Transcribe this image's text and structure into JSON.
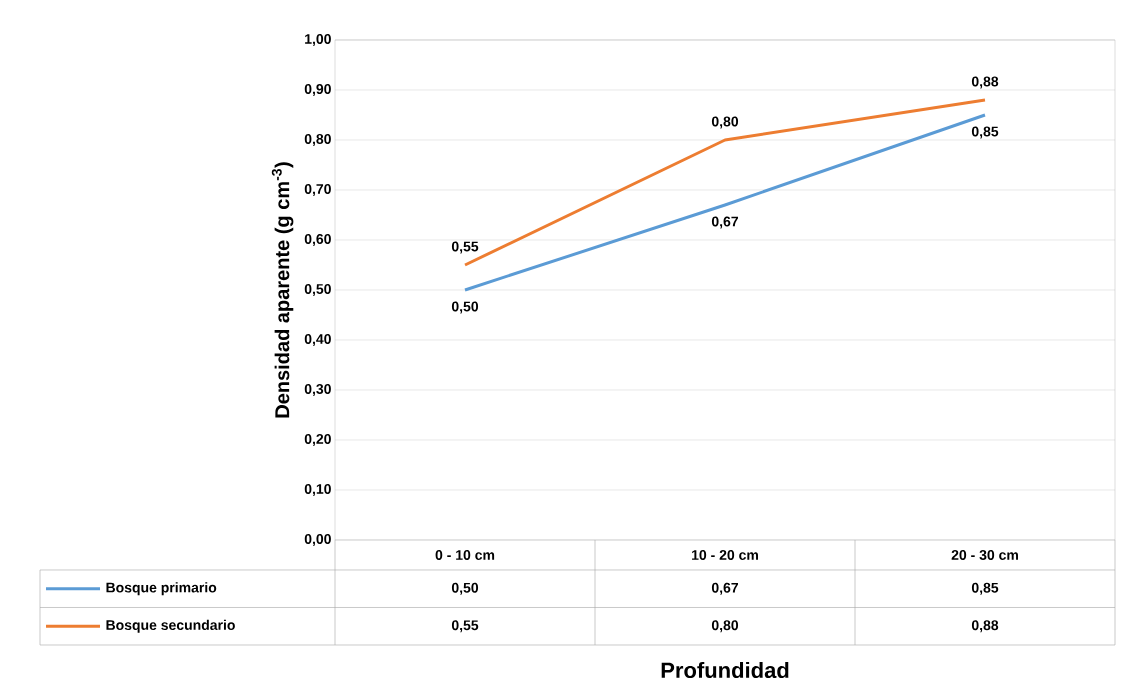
{
  "chart_data": {
    "type": "line",
    "ylabel": "Densidad aparente (g cm$^{-3}$)",
    "xlabel": "Profundidad",
    "categories": [
      "0 - 10 cm",
      "10 - 20 cm",
      "20 - 30 cm"
    ],
    "series": [
      {
        "name": "Bosque primario",
        "color": "#5b9bd5",
        "values": [
          0.5,
          0.67,
          0.85
        ],
        "value_labels": [
          "0,50",
          "0,67",
          "0,85"
        ]
      },
      {
        "name": "Bosque secundario",
        "color": "#ed7d31",
        "values": [
          0.55,
          0.8,
          0.88
        ],
        "value_labels": [
          "0,55",
          "0,80",
          "0,88"
        ]
      }
    ],
    "ylim": [
      0,
      1
    ],
    "yticks": [
      {
        "value": 0,
        "label": "0,00"
      },
      {
        "value": 0.1,
        "label": "0,10"
      },
      {
        "value": 0.2,
        "label": "0,20"
      },
      {
        "value": 0.3,
        "label": "0,30"
      },
      {
        "value": 0.4,
        "label": "0,40"
      },
      {
        "value": 0.5,
        "label": "0,50"
      },
      {
        "value": 0.6,
        "label": "0,60"
      },
      {
        "value": 0.7,
        "label": "0,70"
      },
      {
        "value": 0.8,
        "label": "0,80"
      },
      {
        "value": 0.9,
        "label": "0,90"
      },
      {
        "value": 1,
        "label": "1,00"
      }
    ],
    "grid": "y",
    "legend": "bottom",
    "marker": "none",
    "line_style": "solid"
  }
}
